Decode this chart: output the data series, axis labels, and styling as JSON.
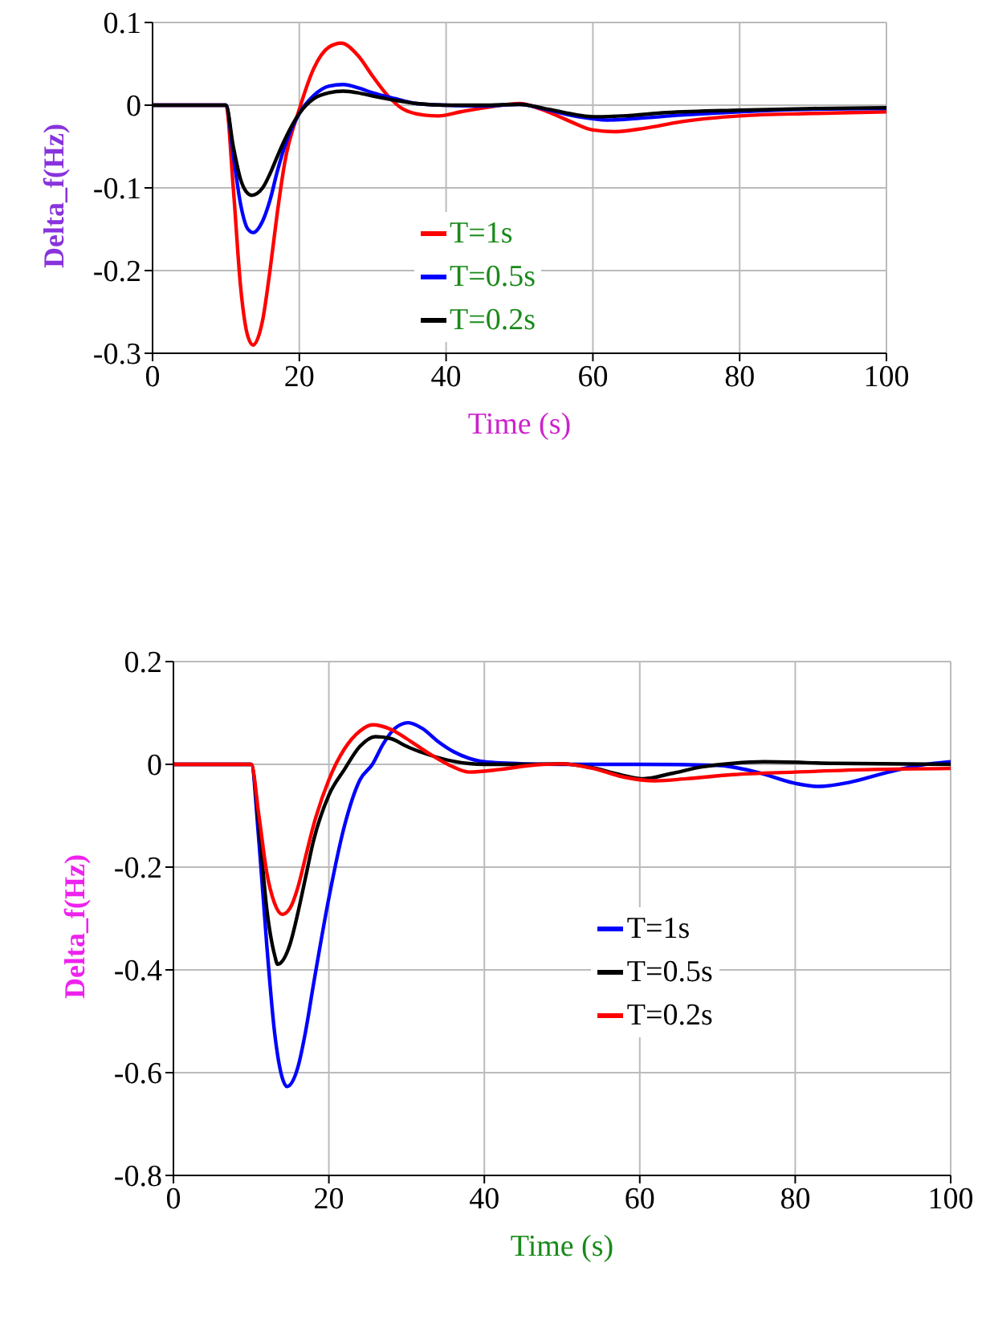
{
  "chart_data": [
    {
      "type": "line",
      "xlabel": "Time (s)",
      "ylabel": "Delta_f(Hz)",
      "xlim": [
        0,
        100
      ],
      "xticks": [
        0,
        20,
        40,
        60,
        80,
        100
      ],
      "ylim": [
        -0.3,
        0.1
      ],
      "yticks": [
        -0.3,
        -0.2,
        -0.1,
        0,
        0.1
      ],
      "grid": true,
      "legend": "center",
      "marker": "none",
      "line_style": "solid",
      "series": [
        {
          "name": "T=1s",
          "color": "#ff0000",
          "x": [
            0,
            10,
            11,
            12,
            13,
            13.7,
            15,
            16,
            17,
            18,
            20,
            22,
            24,
            25.7,
            28,
            30,
            32,
            34,
            37,
            39,
            42,
            46,
            50,
            53,
            57,
            60,
            63,
            67,
            72,
            80,
            90,
            100
          ],
          "values": [
            0,
            0,
            -0.1,
            -0.22,
            -0.28,
            -0.29,
            -0.26,
            -0.2,
            -0.13,
            -0.07,
            -0.005,
            0.045,
            0.07,
            0.075,
            0.06,
            0.035,
            0.012,
            -0.004,
            -0.012,
            -0.013,
            -0.008,
            -0.002,
            0.002,
            -0.005,
            -0.02,
            -0.03,
            -0.032,
            -0.028,
            -0.02,
            -0.013,
            -0.01,
            -0.008
          ]
        },
        {
          "name": "T=0.5s",
          "color": "#0000ff",
          "x": [
            0,
            10,
            11,
            12,
            13,
            13.7,
            15,
            16,
            17,
            18,
            20,
            22,
            24,
            26,
            28,
            30,
            33,
            36,
            40,
            45,
            50,
            54,
            58,
            62,
            66,
            72,
            80,
            90,
            100
          ],
          "values": [
            0,
            0,
            -0.06,
            -0.12,
            -0.15,
            -0.154,
            -0.14,
            -0.115,
            -0.08,
            -0.05,
            -0.01,
            0.012,
            0.023,
            0.025,
            0.021,
            0.015,
            0.008,
            0.002,
            0,
            -0.001,
            0.001,
            -0.006,
            -0.014,
            -0.018,
            -0.016,
            -0.012,
            -0.008,
            -0.005,
            -0.004
          ]
        },
        {
          "name": "T=0.2s",
          "color": "#000000",
          "x": [
            0,
            10,
            11,
            12,
            13,
            13.5,
            15,
            16,
            17,
            18,
            20,
            22,
            24,
            26,
            28,
            30,
            33,
            36,
            40,
            45,
            50,
            54,
            58,
            60,
            64,
            70,
            80,
            90,
            100
          ],
          "values": [
            0,
            0,
            -0.05,
            -0.09,
            -0.107,
            -0.109,
            -0.1,
            -0.083,
            -0.062,
            -0.042,
            -0.01,
            0.008,
            0.015,
            0.017,
            0.015,
            0.011,
            0.006,
            0.002,
            0,
            0,
            0.001,
            -0.005,
            -0.012,
            -0.014,
            -0.013,
            -0.009,
            -0.006,
            -0.004,
            -0.003
          ]
        }
      ]
    },
    {
      "type": "line",
      "xlabel": "Time (s)",
      "ylabel": "Delta_f(Hz)",
      "xlim": [
        0,
        100
      ],
      "xticks": [
        0,
        20,
        40,
        60,
        80,
        100
      ],
      "ylim": [
        -0.8,
        0.2
      ],
      "yticks": [
        -0.8,
        -0.6,
        -0.4,
        -0.2,
        0,
        0.2
      ],
      "grid": true,
      "legend": "center right",
      "marker": "none",
      "line_style": "solid",
      "series": [
        {
          "name": "T=1s",
          "color": "#0000ff",
          "x": [
            0,
            10,
            11,
            12,
            13,
            14,
            14.6,
            16,
            17,
            18,
            20,
            22,
            24,
            25.6,
            27,
            28.5,
            30.2,
            32,
            34,
            36,
            38,
            40,
            45,
            50,
            60,
            70,
            75,
            80,
            83,
            87,
            92,
            96,
            100
          ],
          "values": [
            0,
            0,
            -0.15,
            -0.35,
            -0.52,
            -0.61,
            -0.627,
            -0.59,
            -0.52,
            -0.43,
            -0.26,
            -0.12,
            -0.03,
            0,
            0.04,
            0.07,
            0.081,
            0.07,
            0.045,
            0.025,
            0.012,
            0.005,
            0.001,
            0,
            0,
            -0.002,
            -0.015,
            -0.037,
            -0.043,
            -0.035,
            -0.015,
            -0.002,
            0.005
          ]
        },
        {
          "name": "T=0.5s",
          "color": "#000000",
          "x": [
            0,
            10,
            11,
            12,
            13,
            13.4,
            15,
            16,
            17,
            18,
            20,
            22,
            24,
            26,
            28,
            30,
            33,
            36,
            40,
            45,
            50,
            54,
            58,
            60.5,
            64,
            68,
            72,
            76,
            85,
            100
          ],
          "values": [
            0,
            0,
            -0.12,
            -0.28,
            -0.37,
            -0.389,
            -0.35,
            -0.29,
            -0.22,
            -0.15,
            -0.06,
            -0.01,
            0.035,
            0.054,
            0.05,
            0.035,
            0.018,
            0.006,
            0,
            0,
            0.001,
            -0.007,
            -0.022,
            -0.028,
            -0.018,
            -0.005,
            0.002,
            0.005,
            0.002,
            0
          ]
        },
        {
          "name": "T=0.2s",
          "color": "#ff0000",
          "x": [
            0,
            10,
            11,
            12,
            13,
            14,
            15,
            16,
            17,
            18,
            20,
            22,
            24,
            25.6,
            28,
            30,
            33,
            36,
            38,
            42,
            46,
            50,
            54,
            58,
            62,
            66,
            72,
            80,
            90,
            100
          ],
          "values": [
            0,
            0,
            -0.1,
            -0.21,
            -0.27,
            -0.292,
            -0.28,
            -0.24,
            -0.18,
            -0.12,
            -0.03,
            0.03,
            0.065,
            0.077,
            0.068,
            0.05,
            0.02,
            -0.005,
            -0.015,
            -0.01,
            -0.002,
            0.001,
            -0.008,
            -0.025,
            -0.032,
            -0.028,
            -0.02,
            -0.015,
            -0.01,
            -0.008
          ]
        }
      ]
    }
  ]
}
